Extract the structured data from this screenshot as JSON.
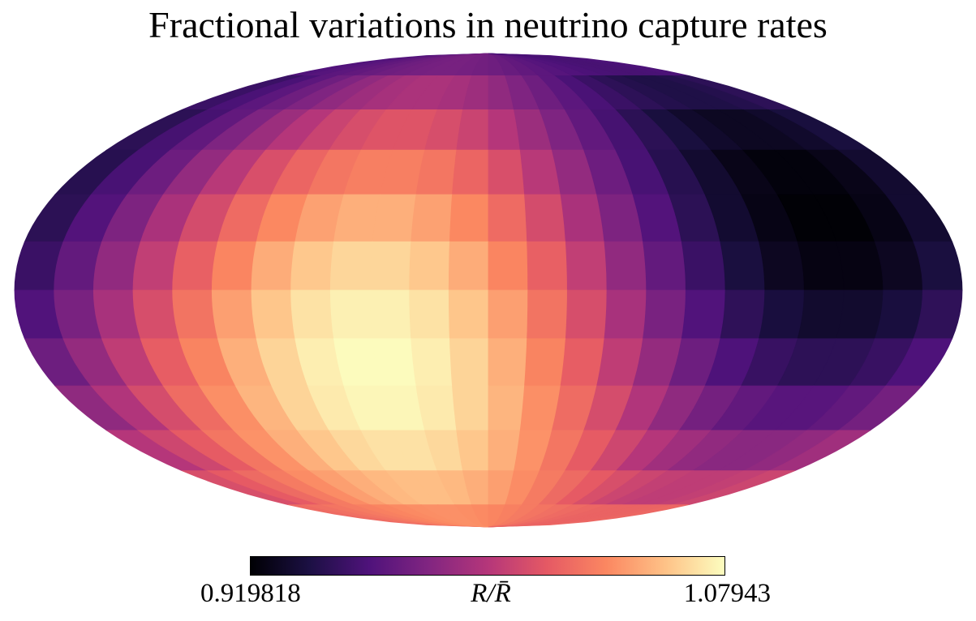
{
  "chart_data": {
    "type": "heatmap",
    "projection": "Mollweide",
    "title": "Fractional variations in neutrino capture rates",
    "colorbar": {
      "min_label": "0.919818",
      "max_label": "1.07943",
      "min": 0.919818,
      "max": 1.07943,
      "label": "R/R̄",
      "colormap": [
        "#000004",
        "#1c1044",
        "#4f127b",
        "#812581",
        "#b5367a",
        "#e55964",
        "#fb8761",
        "#fec287",
        "#fcfdbf"
      ]
    },
    "field": {
      "description": "dipole-like variation across the sky map",
      "max_lon_deg": 45,
      "max_lat_deg": -25,
      "min_lon_deg": -135,
      "min_lat_deg": 25
    }
  }
}
